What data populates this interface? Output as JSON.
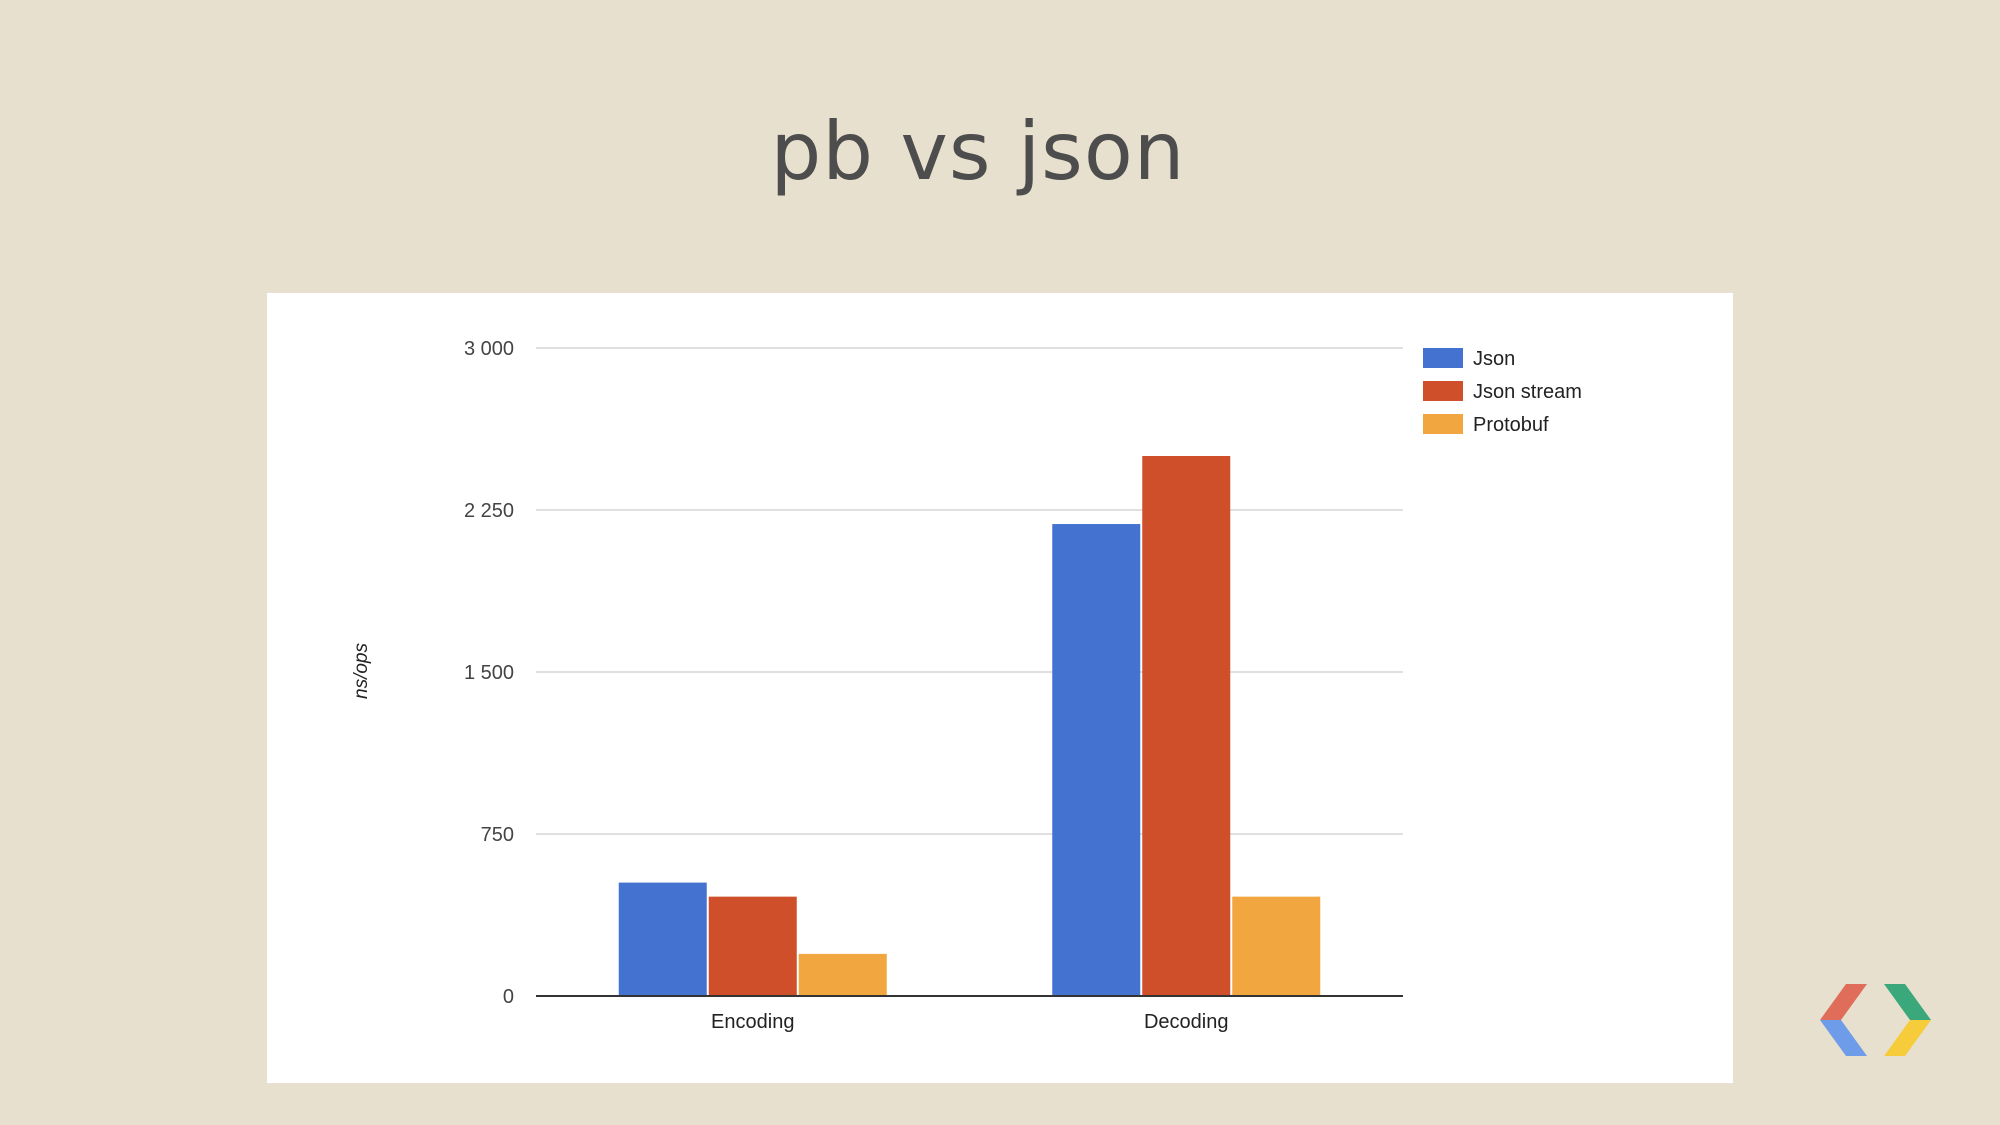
{
  "slide": {
    "title": "pb vs json"
  },
  "chart_data": {
    "type": "bar",
    "title": "",
    "xlabel": "",
    "ylabel": "ns/ops",
    "categories": [
      "Encoding",
      "Decoding"
    ],
    "series": [
      {
        "name": "Json",
        "color": "#4472d0",
        "values": [
          525,
          2185
        ]
      },
      {
        "name": "Json stream",
        "color": "#cf4f2b",
        "values": [
          460,
          2500
        ]
      },
      {
        "name": "Protobuf",
        "color": "#f2a640",
        "values": [
          195,
          460
        ]
      }
    ],
    "ylim": [
      0,
      3000
    ],
    "yticks": [
      0,
      750,
      1500,
      2250,
      3000
    ],
    "ytick_labels": [
      "0",
      "750",
      "1 500",
      "2 250",
      "3 000"
    ],
    "grid": true,
    "legend_position": "right"
  },
  "logo": {
    "name": "google-developers-chevron-logo",
    "colors": [
      "#e06c5a",
      "#6f9ce8",
      "#3aa87a",
      "#f6cc3a"
    ]
  }
}
